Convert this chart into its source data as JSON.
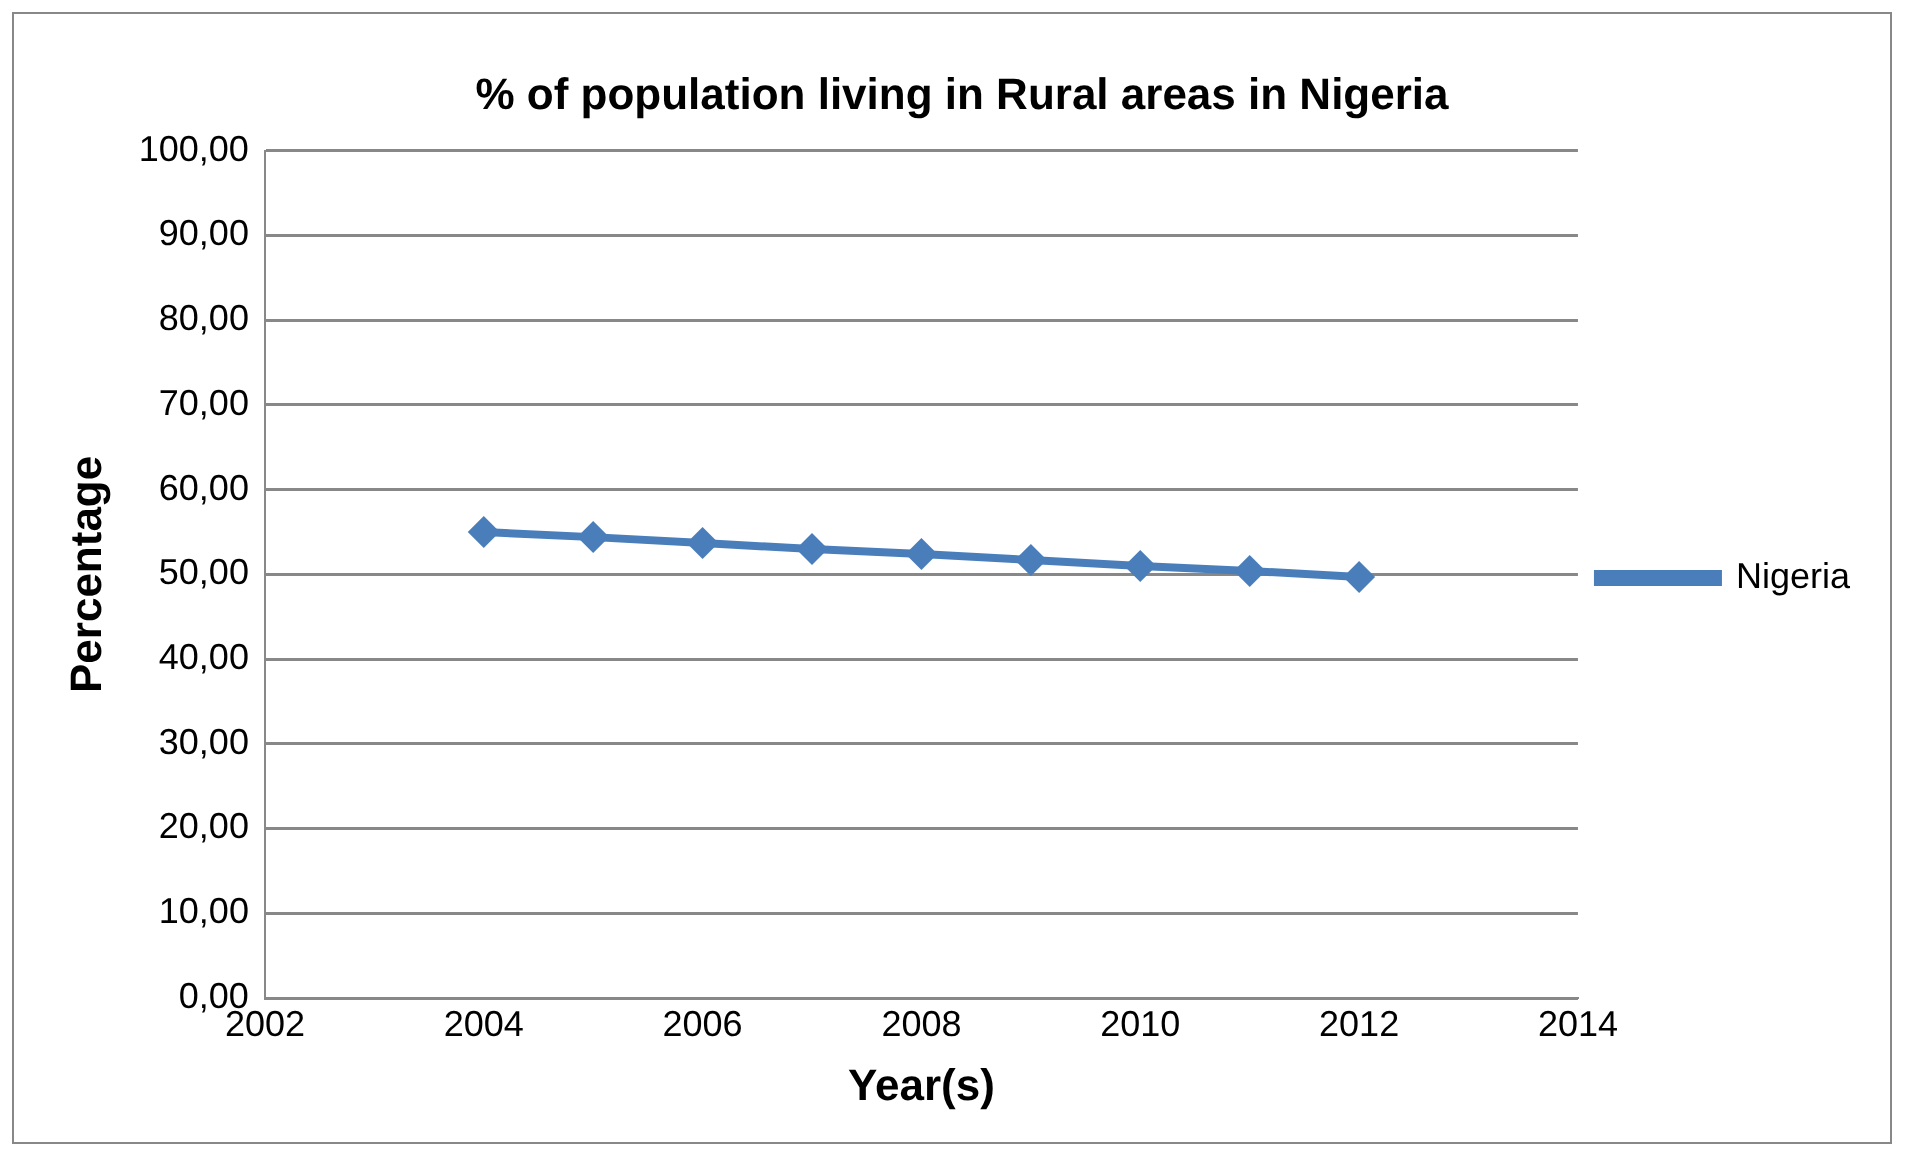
{
  "chart_data": {
    "type": "line",
    "title": "% of population living in Rural areas in Nigeria",
    "xlabel": "Year(s)",
    "ylabel": "Percentage",
    "x": [
      2004,
      2005,
      2006,
      2007,
      2008,
      2009,
      2010,
      2011,
      2012
    ],
    "series": [
      {
        "name": "Nigeria",
        "color": "#4a7ebb",
        "values": [
          55.0,
          54.4,
          53.7,
          53.0,
          52.4,
          51.7,
          51.0,
          50.4,
          49.7
        ]
      }
    ],
    "xlim": [
      2002,
      2014
    ],
    "xticks": [
      2002,
      2004,
      2006,
      2008,
      2010,
      2012,
      2014
    ],
    "ylim": [
      0,
      100
    ],
    "yticks": [
      {
        "value": 0,
        "label": "0,00"
      },
      {
        "value": 10,
        "label": "10,00"
      },
      {
        "value": 20,
        "label": "20,00"
      },
      {
        "value": 30,
        "label": "30,00"
      },
      {
        "value": 40,
        "label": "40,00"
      },
      {
        "value": 50,
        "label": "50,00"
      },
      {
        "value": 60,
        "label": "60,00"
      },
      {
        "value": 70,
        "label": "70,00"
      },
      {
        "value": 80,
        "label": "80,00"
      },
      {
        "value": 90,
        "label": "90,00"
      },
      {
        "value": 100,
        "label": "100,00"
      }
    ],
    "grid": "y",
    "legend": "right",
    "marker": "diamond",
    "line_style": "solid"
  }
}
